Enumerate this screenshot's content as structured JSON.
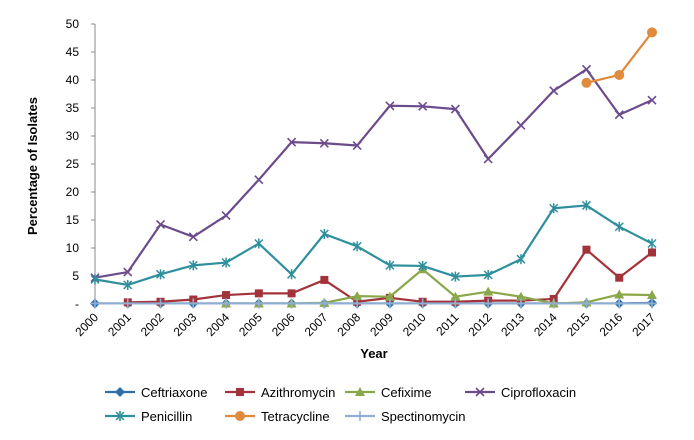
{
  "chart_data": {
    "type": "line",
    "title": "",
    "xlabel": "Year",
    "ylabel": "Percentage of Isolates",
    "ylim": [
      0,
      50
    ],
    "yticks": [
      "-",
      "5",
      "10",
      "15",
      "20",
      "25",
      "30",
      "35",
      "40",
      "45",
      "50"
    ],
    "grid": false,
    "legend_position": "bottom",
    "categories": [
      "2000",
      "2001",
      "2002",
      "2003",
      "2004",
      "2005",
      "2006",
      "2007",
      "2008",
      "2009",
      "2010",
      "2011",
      "2012",
      "2013",
      "2014",
      "2015",
      "2016",
      "2017"
    ],
    "series": [
      {
        "name": "Ceftriaxone",
        "color": "#2e6fa7",
        "marker": "diamond",
        "values": [
          0.1,
          0.1,
          0.1,
          0.1,
          0.1,
          0.1,
          0.1,
          0.1,
          0.1,
          0.1,
          0.1,
          0.1,
          0.1,
          0.1,
          0.1,
          0.1,
          0.1,
          0.2
        ]
      },
      {
        "name": "Azithromycin",
        "color": "#a3333a",
        "marker": "square",
        "values": [
          null,
          0.3,
          0.4,
          0.8,
          1.6,
          1.9,
          1.9,
          4.3,
          0.4,
          1.1,
          0.4,
          0.4,
          0.6,
          0.6,
          0.9,
          9.7,
          4.7,
          9.2
        ]
      },
      {
        "name": "Cefixime",
        "color": "#8aa84a",
        "marker": "triangle",
        "values": [
          null,
          null,
          null,
          null,
          0.1,
          0.1,
          0.1,
          0.2,
          1.4,
          1.3,
          6.2,
          1.3,
          2.2,
          1.3,
          0.1,
          0.3,
          1.7,
          1.6
        ]
      },
      {
        "name": "Ciprofloxacin",
        "color": "#6c4b8c",
        "marker": "x",
        "values": [
          4.7,
          5.7,
          14.2,
          12.0,
          15.8,
          22.2,
          28.9,
          28.7,
          28.3,
          35.4,
          35.3,
          34.8,
          25.9,
          31.9,
          38.1,
          41.9,
          33.8,
          36.4
        ]
      },
      {
        "name": "Penicillin",
        "color": "#2f8f9d",
        "marker": "asterisk",
        "values": [
          4.4,
          3.4,
          5.3,
          6.9,
          7.4,
          10.8,
          5.3,
          12.5,
          10.3,
          6.9,
          6.8,
          4.9,
          5.2,
          8.0,
          17.1,
          17.6,
          13.8,
          10.8
        ]
      },
      {
        "name": "Tetracycline",
        "color": "#e08a3c",
        "marker": "circle",
        "values": [
          null,
          null,
          null,
          null,
          null,
          null,
          null,
          null,
          null,
          null,
          null,
          null,
          null,
          null,
          null,
          39.5,
          40.9,
          48.5
        ]
      },
      {
        "name": "Spectinomycin",
        "color": "#8faed2",
        "marker": "plus",
        "values": [
          0.1,
          0.1,
          0.1,
          0.1,
          0.1,
          0.1,
          0.1,
          0.1,
          0.1,
          0.1,
          0.1,
          0.1,
          0.1,
          0.1,
          0.1,
          0.1,
          0.1,
          0.1
        ]
      }
    ]
  }
}
